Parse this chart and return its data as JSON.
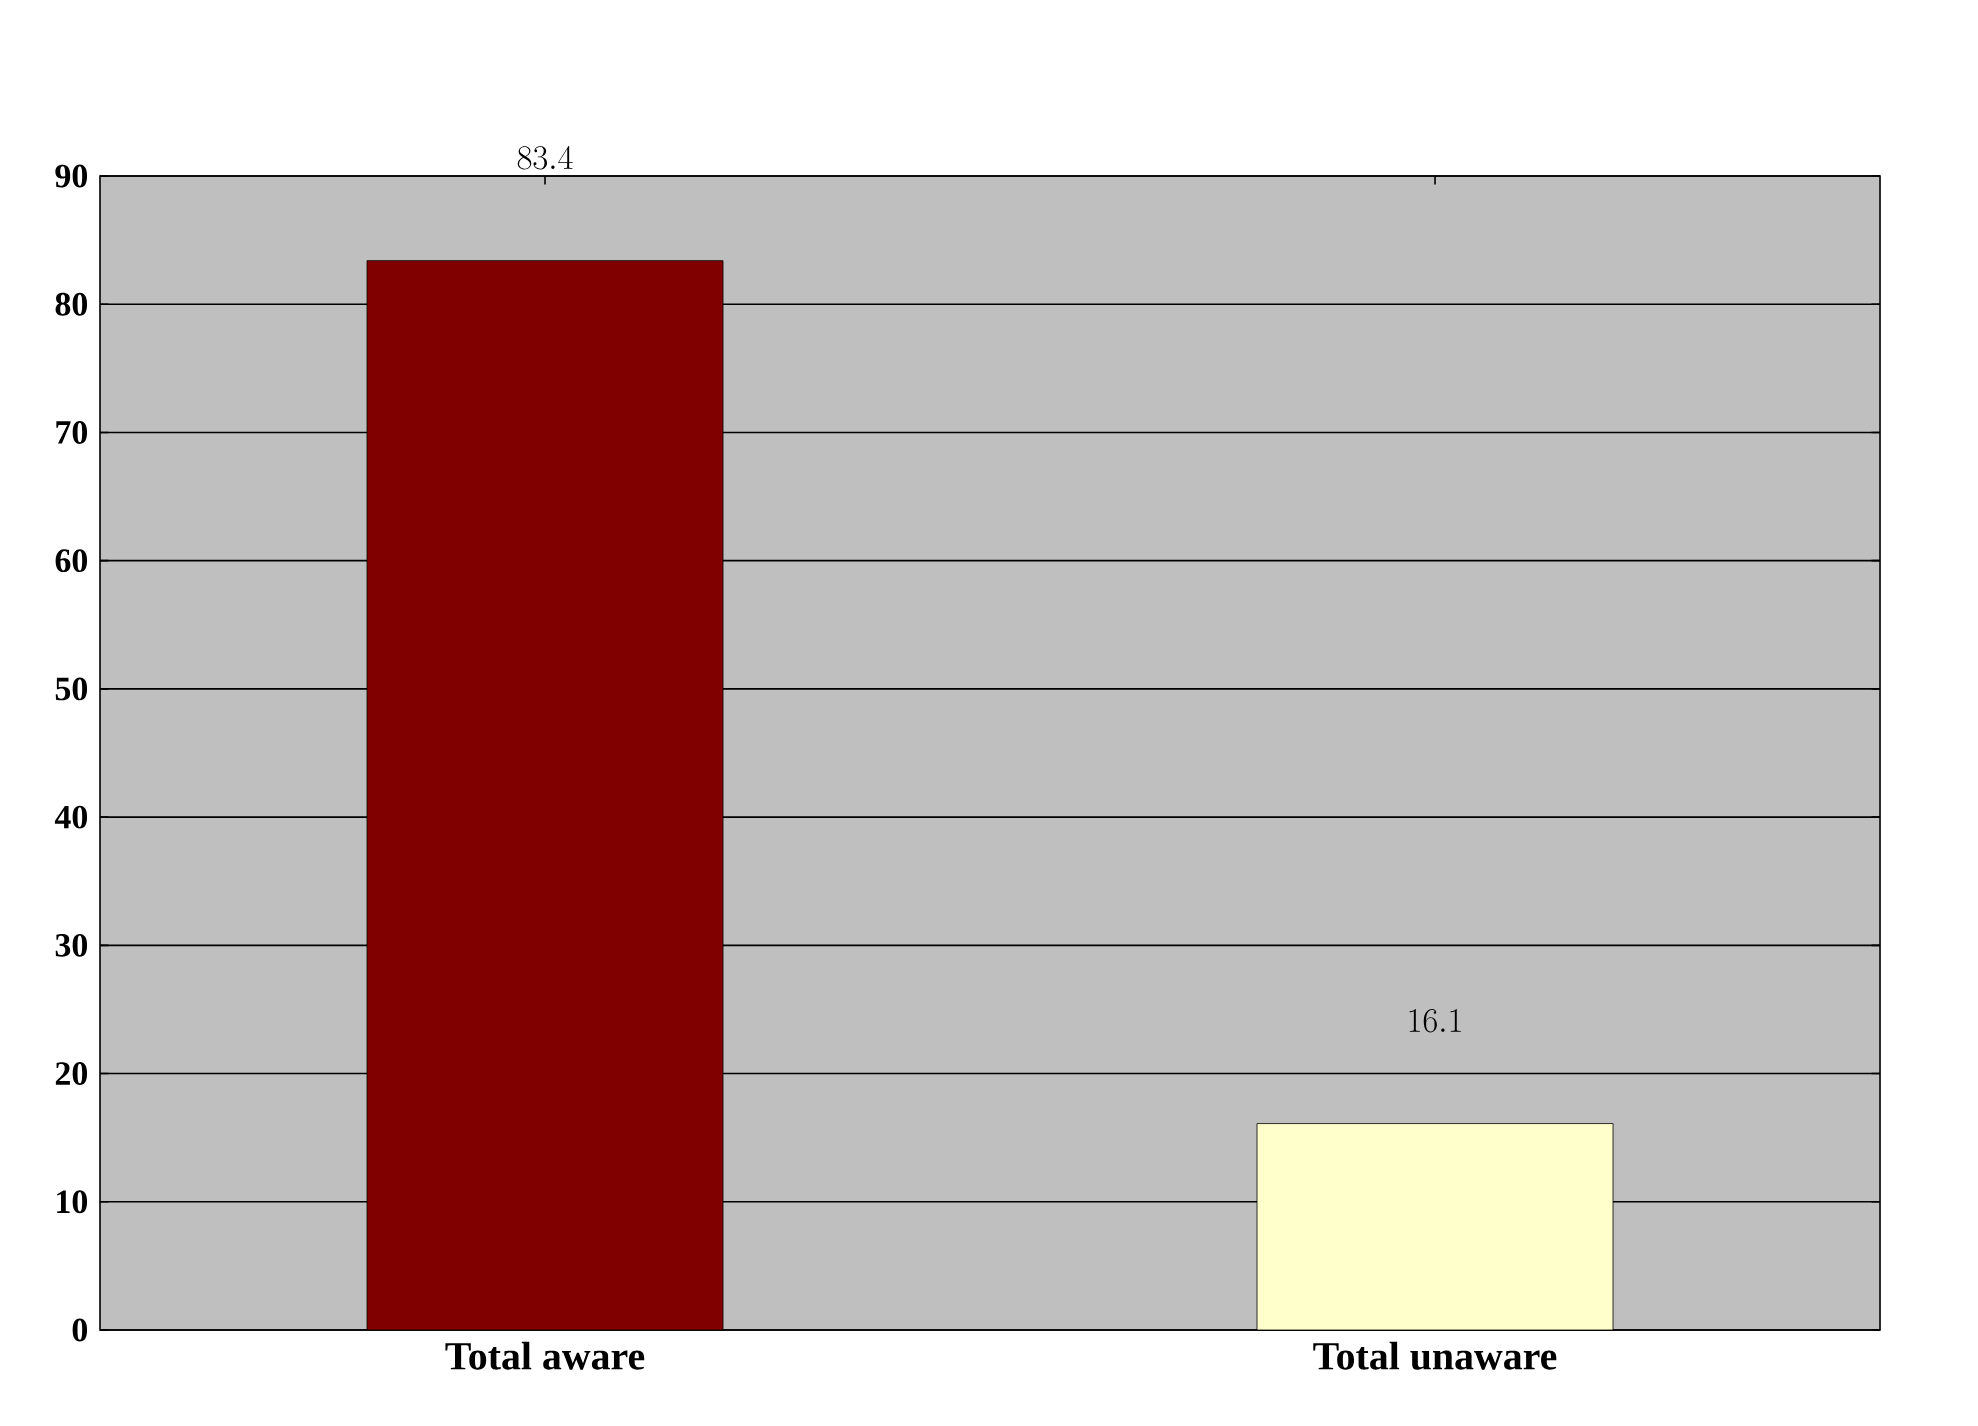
{
  "chart_data": {
    "type": "bar",
    "categories": [
      "Total aware",
      "Total unaware"
    ],
    "values": [
      83.4,
      16.1
    ],
    "colors": [
      "#800000",
      "#ffffcc"
    ],
    "ylim": [
      0,
      90
    ],
    "yticks": [
      0,
      10,
      20,
      30,
      40,
      50,
      60,
      70,
      80,
      90
    ],
    "grid": "y",
    "data_labels": true
  }
}
